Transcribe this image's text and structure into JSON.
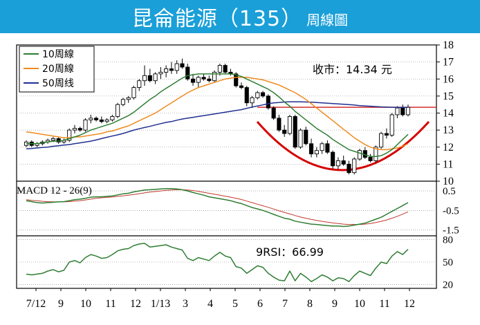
{
  "header": {
    "title": "昆侖能源（135）",
    "subtitle": "周線圖"
  },
  "colors": {
    "banner": "#1a9fd8",
    "ma10": "#2e7d32",
    "ma20": "#ef8a1f",
    "ma50": "#1f2f8f",
    "resistance": "#d32f2f",
    "cup": "#d50000",
    "macd": "#2e7d32",
    "signal": "#c0392b",
    "rsi": "#2e7d32"
  },
  "chart_data": {
    "type": "candlestick",
    "x_labels": [
      "7/12",
      "9",
      "10",
      "11",
      "12",
      "1/13",
      "3",
      "4",
      "5",
      "6",
      "7",
      "8",
      "9",
      "10",
      "11",
      "12"
    ],
    "price_axis": {
      "ticks": [
        10,
        11,
        12,
        13,
        14,
        15,
        16,
        17,
        18
      ],
      "range": [
        10,
        18
      ]
    },
    "legend": [
      "10周線",
      "20周線",
      "50周线"
    ],
    "close_annotation": "收市：14.34 元",
    "resistance_level": 14.34,
    "candles": [
      [
        12.1,
        12.4,
        12.0,
        12.3
      ],
      [
        12.3,
        12.4,
        12.0,
        12.1
      ],
      [
        12.1,
        12.3,
        12.0,
        12.2
      ],
      [
        12.2,
        12.4,
        12.1,
        12.3
      ],
      [
        12.3,
        12.5,
        12.2,
        12.4
      ],
      [
        12.4,
        12.6,
        12.3,
        12.5
      ],
      [
        12.5,
        12.6,
        12.2,
        12.3
      ],
      [
        12.3,
        12.5,
        12.2,
        12.4
      ],
      [
        12.4,
        13.1,
        12.3,
        13.0
      ],
      [
        13.0,
        13.3,
        12.8,
        13.1
      ],
      [
        13.1,
        13.2,
        12.9,
        13.0
      ],
      [
        13.0,
        13.7,
        12.9,
        13.6
      ],
      [
        13.6,
        13.9,
        13.4,
        13.7
      ],
      [
        13.7,
        13.8,
        13.5,
        13.6
      ],
      [
        13.6,
        13.8,
        13.4,
        13.5
      ],
      [
        13.5,
        13.7,
        13.4,
        13.6
      ],
      [
        13.6,
        13.9,
        13.5,
        13.8
      ],
      [
        13.8,
        14.6,
        13.7,
        14.5
      ],
      [
        14.5,
        14.9,
        14.4,
        14.8
      ],
      [
        14.8,
        15.0,
        14.6,
        14.9
      ],
      [
        14.9,
        15.6,
        14.8,
        15.5
      ],
      [
        15.5,
        16.0,
        15.3,
        15.9
      ],
      [
        15.9,
        16.8,
        15.6,
        16.2
      ],
      [
        16.2,
        16.6,
        15.8,
        15.9
      ],
      [
        15.9,
        16.4,
        15.7,
        16.3
      ],
      [
        16.3,
        16.7,
        16.0,
        16.4
      ],
      [
        16.4,
        16.8,
        16.1,
        16.6
      ],
      [
        16.6,
        17.0,
        16.3,
        16.5
      ],
      [
        16.5,
        17.1,
        16.3,
        16.9
      ],
      [
        16.9,
        17.2,
        16.6,
        16.7
      ],
      [
        16.7,
        16.9,
        15.9,
        16.0
      ],
      [
        16.0,
        16.3,
        15.6,
        15.8
      ],
      [
        15.8,
        16.2,
        15.5,
        16.1
      ],
      [
        16.1,
        16.3,
        15.9,
        16.0
      ],
      [
        16.0,
        16.2,
        15.8,
        15.9
      ],
      [
        15.9,
        16.5,
        15.8,
        16.4
      ],
      [
        16.4,
        16.9,
        16.2,
        16.8
      ],
      [
        16.8,
        16.9,
        16.3,
        16.4
      ],
      [
        16.4,
        16.6,
        16.2,
        16.3
      ],
      [
        16.3,
        16.4,
        15.5,
        15.6
      ],
      [
        15.6,
        15.8,
        15.4,
        15.5
      ],
      [
        15.5,
        15.6,
        14.4,
        14.6
      ],
      [
        14.6,
        15.0,
        14.3,
        14.9
      ],
      [
        14.9,
        15.3,
        14.8,
        15.2
      ],
      [
        15.2,
        15.3,
        14.9,
        15.0
      ],
      [
        15.0,
        15.1,
        14.2,
        14.3
      ],
      [
        14.3,
        14.4,
        13.6,
        13.7
      ],
      [
        13.7,
        13.9,
        12.9,
        13.0
      ],
      [
        13.0,
        13.3,
        12.6,
        12.8
      ],
      [
        12.8,
        13.9,
        12.7,
        13.8
      ],
      [
        13.8,
        13.9,
        11.9,
        12.0
      ],
      [
        12.0,
        13.1,
        11.9,
        13.0
      ],
      [
        13.0,
        13.2,
        12.1,
        12.2
      ],
      [
        12.2,
        12.5,
        11.4,
        11.6
      ],
      [
        11.6,
        12.0,
        11.4,
        11.8
      ],
      [
        11.8,
        12.3,
        11.6,
        12.2
      ],
      [
        12.2,
        12.4,
        11.6,
        11.7
      ],
      [
        11.7,
        11.8,
        10.7,
        10.9
      ],
      [
        10.9,
        11.4,
        10.7,
        11.2
      ],
      [
        11.2,
        11.5,
        10.9,
        11.0
      ],
      [
        11.0,
        11.2,
        10.4,
        10.5
      ],
      [
        10.5,
        11.4,
        10.4,
        11.3
      ],
      [
        11.3,
        11.9,
        11.2,
        11.8
      ],
      [
        11.8,
        12.0,
        11.3,
        11.4
      ],
      [
        11.4,
        11.6,
        11.1,
        11.2
      ],
      [
        11.2,
        12.1,
        11.1,
        12.0
      ],
      [
        12.0,
        12.9,
        11.9,
        12.8
      ],
      [
        12.8,
        13.1,
        12.5,
        12.7
      ],
      [
        12.7,
        14.0,
        12.6,
        13.9
      ],
      [
        13.9,
        14.4,
        13.7,
        14.3
      ],
      [
        14.3,
        14.5,
        13.8,
        13.9
      ],
      [
        13.9,
        14.5,
        13.8,
        14.34
      ]
    ],
    "ma10": [
      12.2,
      12.2,
      12.2,
      12.25,
      12.3,
      12.35,
      12.35,
      12.4,
      12.5,
      12.6,
      12.7,
      12.85,
      13.0,
      13.1,
      13.2,
      13.3,
      13.4,
      13.55,
      13.7,
      13.85,
      14.05,
      14.3,
      14.55,
      14.8,
      15.0,
      15.25,
      15.45,
      15.65,
      15.85,
      16.05,
      16.2,
      16.25,
      16.3,
      16.3,
      16.3,
      16.3,
      16.3,
      16.3,
      16.3,
      16.25,
      16.15,
      16.0,
      15.85,
      15.7,
      15.55,
      15.4,
      15.2,
      14.95,
      14.65,
      14.4,
      14.1,
      13.85,
      13.6,
      13.35,
      13.1,
      12.9,
      12.7,
      12.45,
      12.25,
      12.05,
      11.85,
      11.75,
      11.65,
      11.55,
      11.45,
      11.45,
      11.5,
      11.65,
      11.85,
      12.15,
      12.45,
      12.75
    ],
    "ma20": [
      12.9,
      12.85,
      12.8,
      12.75,
      12.7,
      12.65,
      12.6,
      12.55,
      12.55,
      12.6,
      12.6,
      12.65,
      12.7,
      12.75,
      12.8,
      12.9,
      12.95,
      13.05,
      13.15,
      13.25,
      13.4,
      13.55,
      13.7,
      13.85,
      14.0,
      14.2,
      14.4,
      14.6,
      14.8,
      15.0,
      15.2,
      15.35,
      15.5,
      15.6,
      15.7,
      15.8,
      15.9,
      16.0,
      16.05,
      16.1,
      16.1,
      16.1,
      16.05,
      16.0,
      15.95,
      15.85,
      15.75,
      15.65,
      15.5,
      15.35,
      15.2,
      15.0,
      14.8,
      14.55,
      14.3,
      14.05,
      13.8,
      13.55,
      13.3,
      13.05,
      12.8,
      12.55,
      12.35,
      12.15,
      12.0,
      11.9,
      11.85,
      11.85,
      11.9,
      11.95,
      12.05,
      12.2
    ],
    "ma50": [
      11.9,
      11.92,
      11.95,
      11.98,
      12.0,
      12.05,
      12.08,
      12.12,
      12.15,
      12.2,
      12.25,
      12.3,
      12.35,
      12.42,
      12.5,
      12.58,
      12.65,
      12.72,
      12.8,
      12.9,
      13.0,
      13.08,
      13.15,
      13.22,
      13.3,
      13.38,
      13.45,
      13.5,
      13.58,
      13.65,
      13.7,
      13.75,
      13.8,
      13.85,
      13.9,
      13.95,
      14.0,
      14.05,
      14.1,
      14.15,
      14.2,
      14.28,
      14.35,
      14.42,
      14.48,
      14.55,
      14.6,
      14.62,
      14.65,
      14.66,
      14.66,
      14.66,
      14.65,
      14.64,
      14.62,
      14.6,
      14.58,
      14.56,
      14.54,
      14.52,
      14.5,
      14.47,
      14.44,
      14.42,
      14.4,
      14.38,
      14.36,
      14.35,
      14.34,
      14.33,
      14.33,
      14.34
    ],
    "macd": {
      "label": "MACD 12 - 26(9)",
      "ticks": [
        0.5,
        -0.5,
        -1.5
      ],
      "range": [
        -1.8,
        1.0
      ],
      "macd": [
        0.0,
        -0.05,
        -0.1,
        -0.12,
        -0.1,
        -0.08,
        -0.06,
        -0.05,
        0.0,
        0.05,
        0.08,
        0.12,
        0.18,
        0.2,
        0.2,
        0.22,
        0.24,
        0.3,
        0.35,
        0.38,
        0.45,
        0.5,
        0.55,
        0.56,
        0.58,
        0.6,
        0.62,
        0.62,
        0.6,
        0.56,
        0.5,
        0.42,
        0.35,
        0.28,
        0.2,
        0.15,
        0.1,
        0.05,
        0.0,
        -0.08,
        -0.15,
        -0.25,
        -0.35,
        -0.42,
        -0.5,
        -0.6,
        -0.7,
        -0.8,
        -0.9,
        -0.95,
        -1.05,
        -1.1,
        -1.15,
        -1.2,
        -1.22,
        -1.25,
        -1.28,
        -1.3,
        -1.3,
        -1.32,
        -1.3,
        -1.25,
        -1.2,
        -1.15,
        -1.05,
        -0.95,
        -0.85,
        -0.7,
        -0.55,
        -0.4,
        -0.25,
        -0.1
      ],
      "signal": [
        0.05,
        0.02,
        0.0,
        -0.03,
        -0.05,
        -0.06,
        -0.06,
        -0.06,
        -0.05,
        -0.02,
        0.0,
        0.04,
        0.08,
        0.12,
        0.15,
        0.17,
        0.19,
        0.22,
        0.25,
        0.28,
        0.32,
        0.36,
        0.4,
        0.44,
        0.47,
        0.5,
        0.53,
        0.55,
        0.56,
        0.56,
        0.55,
        0.52,
        0.48,
        0.43,
        0.38,
        0.33,
        0.28,
        0.23,
        0.18,
        0.12,
        0.06,
        -0.02,
        -0.1,
        -0.18,
        -0.26,
        -0.34,
        -0.43,
        -0.52,
        -0.6,
        -0.68,
        -0.76,
        -0.84,
        -0.9,
        -0.96,
        -1.01,
        -1.06,
        -1.1,
        -1.14,
        -1.17,
        -1.2,
        -1.22,
        -1.22,
        -1.22,
        -1.2,
        -1.17,
        -1.12,
        -1.06,
        -0.99,
        -0.9,
        -0.8,
        -0.69,
        -0.57
      ]
    },
    "rsi": {
      "label": "9RSI：66.99",
      "ticks": [
        80,
        50,
        20
      ],
      "range": [
        15,
        85
      ],
      "values": [
        34,
        33,
        34,
        35,
        38,
        40,
        37,
        39,
        50,
        52,
        49,
        56,
        60,
        58,
        55,
        56,
        60,
        65,
        67,
        68,
        72,
        74,
        75,
        70,
        71,
        72,
        73,
        70,
        68,
        66,
        55,
        52,
        56,
        54,
        52,
        58,
        63,
        58,
        56,
        44,
        42,
        35,
        40,
        45,
        43,
        35,
        30,
        26,
        25,
        38,
        25,
        35,
        30,
        24,
        28,
        33,
        30,
        25,
        29,
        28,
        24,
        32,
        38,
        35,
        32,
        42,
        50,
        48,
        58,
        64,
        60,
        66.99
      ]
    }
  }
}
